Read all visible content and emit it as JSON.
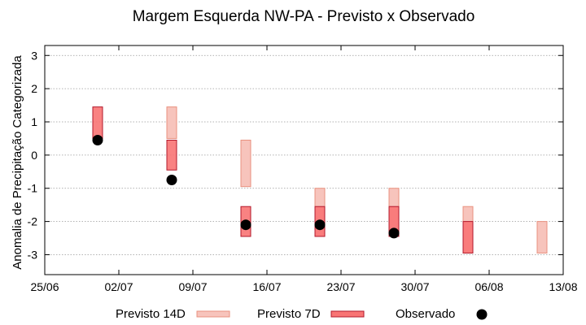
{
  "chart_data": {
    "type": "bar",
    "title": "Margem Esquerda NW-PA - Previsto x Observado",
    "xlabel": "",
    "ylabel": "Anomalia de Precipitação Categorizada",
    "x_ticks": [
      "25/06",
      "02/07",
      "09/07",
      "16/07",
      "23/07",
      "30/07",
      "06/08",
      "13/08"
    ],
    "xlim": [
      "2024-06-25",
      "2024-08-13"
    ],
    "y_ticks": [
      3,
      2,
      1,
      0,
      -1,
      -2,
      -3
    ],
    "ylim": [
      -3.6,
      3.3
    ],
    "grid": true,
    "legend_position": "bottom",
    "colors": {
      "previsto_14d_fill": "#f7c4bc",
      "previsto_14d_stroke": "#e9917f",
      "previsto_7d_fill": "#f87474",
      "previsto_7d_stroke": "#b2182b",
      "observado": "#000000",
      "grid": "#999999"
    },
    "legend": [
      {
        "label": "Previsto 14D",
        "kind": "box-14d"
      },
      {
        "label": "Previsto 7D",
        "kind": "box-7d"
      },
      {
        "label": "Observado",
        "kind": "dot"
      }
    ],
    "series": [
      {
        "name": "Previsto 14D",
        "ranges": [
          {
            "date": "2024-07-07",
            "low": 0.5,
            "high": 1.45
          },
          {
            "date": "2024-07-14",
            "low": -0.95,
            "high": 0.45
          },
          {
            "date": "2024-07-21",
            "low": -2.45,
            "high": -1.0
          },
          {
            "date": "2024-07-28",
            "low": -2.45,
            "high": -1.0
          },
          {
            "date": "2024-08-04",
            "low": -2.95,
            "high": -1.55
          },
          {
            "date": "2024-08-11",
            "low": -2.95,
            "high": -2.0
          }
        ]
      },
      {
        "name": "Previsto 7D",
        "ranges": [
          {
            "date": "2024-06-30",
            "low": 0.5,
            "high": 1.45
          },
          {
            "date": "2024-07-07",
            "low": -0.45,
            "high": 0.45
          },
          {
            "date": "2024-07-14",
            "low": -2.45,
            "high": -1.55
          },
          {
            "date": "2024-07-21",
            "low": -2.45,
            "high": -1.55
          },
          {
            "date": "2024-07-28",
            "low": -2.45,
            "high": -1.55
          },
          {
            "date": "2024-08-04",
            "low": -2.95,
            "high": -2.0
          }
        ]
      },
      {
        "name": "Observado",
        "points": [
          {
            "date": "2024-06-30",
            "value": 0.45
          },
          {
            "date": "2024-07-07",
            "value": -0.75
          },
          {
            "date": "2024-07-14",
            "value": -2.1
          },
          {
            "date": "2024-07-21",
            "value": -2.1
          },
          {
            "date": "2024-07-28",
            "value": -2.35
          }
        ]
      }
    ]
  }
}
